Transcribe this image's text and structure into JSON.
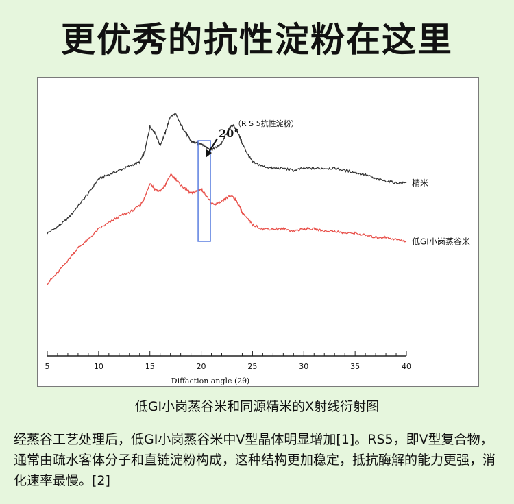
{
  "headline": "更优秀的抗性淀粉在这里",
  "caption": "低GI小岗蒸谷米和同源精米的X射线衍射图",
  "body_text": "经蒸谷工艺处理后，低GI小岗蒸谷米中V型晶体明显增加[1]。RS5，即V型复合物，通常由疏水客体分子和直链淀粉构成，这种结构更加稳定，抵抗酶解的能力更强，消化速率最慢。[2]",
  "chart_data": {
    "type": "line",
    "title": "",
    "xlabel": "Diffaction angle (2θ)",
    "ylabel": "",
    "xlim": [
      5,
      40
    ],
    "ylim": [
      0,
      100
    ],
    "xticks": [
      5,
      10,
      15,
      20,
      25,
      30,
      35,
      40
    ],
    "grid": false,
    "annotation": {
      "label": "20°",
      "note": "（R S 5抗性淀粉）",
      "highlight_x": [
        19.7,
        20.9
      ]
    },
    "series": [
      {
        "name": "精米",
        "color": "#333333",
        "x": [
          5,
          6,
          7,
          8,
          9,
          10,
          11,
          12,
          13,
          14,
          14.5,
          15,
          15.5,
          16,
          16.5,
          17,
          17.5,
          18,
          18.5,
          19,
          19.5,
          20,
          20.5,
          21,
          21.5,
          22,
          22.5,
          23,
          23.5,
          24,
          24.5,
          25,
          26,
          27,
          28,
          29,
          30,
          31,
          32,
          33,
          34,
          35,
          36,
          37,
          38,
          39,
          40
        ],
        "values": [
          39,
          42,
          46,
          52,
          58,
          65,
          67,
          69,
          71,
          73,
          78,
          90,
          87,
          81,
          87,
          95,
          96,
          91,
          87,
          83,
          82,
          82,
          80,
          79,
          80,
          82,
          87,
          91,
          88,
          82,
          77,
          73,
          71,
          70,
          70,
          69,
          70,
          70,
          70,
          70,
          69,
          68,
          67,
          65,
          64,
          63,
          63
        ]
      },
      {
        "name": "低GI小岗蒸谷米",
        "color": "#e8504a",
        "x": [
          5,
          6,
          7,
          8,
          9,
          10,
          11,
          12,
          13,
          14,
          14.5,
          15,
          15.5,
          16,
          16.5,
          17,
          17.5,
          18,
          18.5,
          19,
          19.5,
          20,
          20.5,
          21,
          21.5,
          22,
          22.5,
          23,
          23.5,
          24,
          24.5,
          25,
          26,
          27,
          28,
          29,
          30,
          31,
          32,
          33,
          34,
          35,
          36,
          37,
          38,
          39,
          40
        ],
        "values": [
          15,
          20,
          26,
          32,
          36,
          41,
          44,
          47,
          49,
          52,
          56,
          63,
          60,
          59,
          62,
          67,
          65,
          62,
          60,
          58,
          59,
          60,
          57,
          53,
          53,
          54,
          56,
          57,
          54,
          49,
          46,
          43,
          41,
          41,
          41,
          40,
          41,
          41,
          40,
          40,
          39,
          39,
          38,
          37,
          37,
          36,
          35
        ]
      }
    ]
  }
}
